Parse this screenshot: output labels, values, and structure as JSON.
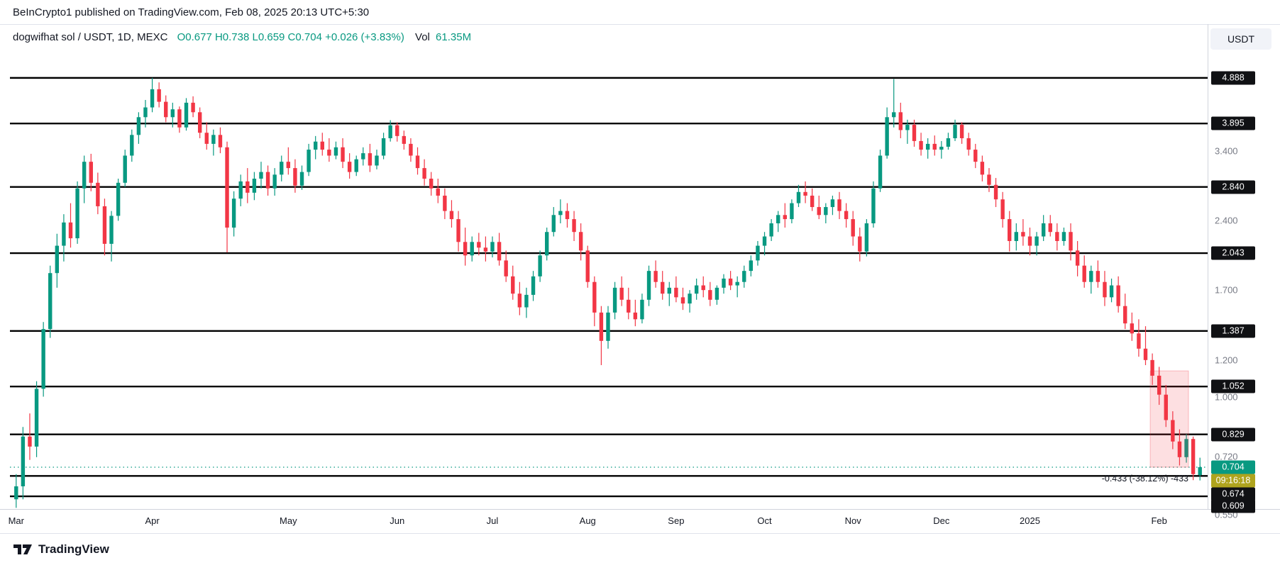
{
  "page": {
    "attribution": "BeInCrypto1 published on TradingView.com, Feb 08, 2025 20:13 UTC+5:30"
  },
  "legend": {
    "symbol": "dogwifhat sol / USDT, 1D, MEXC",
    "values": "O0.677 H0.738 L0.659 C0.704 +0.026 (+3.83%)",
    "vol_label": "Vol",
    "vol_value": "61.35M"
  },
  "toolbar": {
    "currency_button": "USDT"
  },
  "footer": {
    "brand": "TradingView"
  },
  "colors": {
    "up": "#089981",
    "down": "#f23645",
    "level_line": "#000000",
    "level_label_bg": "#101114",
    "price_label_bg": "#089981",
    "countdown_bg": "#afa41e",
    "measure_fill": "rgba(242,54,69,0.16)",
    "axis_text": "#787b86",
    "text": "#131722"
  },
  "chart_data": {
    "type": "candlestick",
    "symbol": "dogwifhat sol / USDT",
    "interval": "1D",
    "exchange": "MEXC",
    "price_scale": "log",
    "x_range": [
      "Mar 2024",
      "Feb 2025"
    ],
    "last_ohlc": {
      "open": 0.677,
      "high": 0.738,
      "low": 0.659,
      "close": 0.704,
      "change": "+0.026",
      "change_pct": "+3.83%",
      "volume": "61.35M"
    },
    "level_lines": [
      "4.888",
      "3.895",
      "2.840",
      "2.043",
      "1.387",
      "1.052",
      "0.829",
      "0.674",
      "0.609"
    ],
    "y_axis_ticks": [
      "3.400",
      "2.400",
      "1.700",
      "1.200",
      "1.000",
      "0.720",
      "0.550"
    ],
    "current_price": {
      "label": "0.704",
      "value": 0.704,
      "countdown": "09:16:18"
    },
    "measure_tool": {
      "label": "-0.433 (-38.12%) -433",
      "from_price": 1.137,
      "to_price": 0.704,
      "start_index": 167,
      "end_index": 172
    },
    "x_tick_labels": [
      {
        "label": "Mar",
        "index": 0
      },
      {
        "label": "Apr",
        "index": 20
      },
      {
        "label": "May",
        "index": 40
      },
      {
        "label": "Jun",
        "index": 56
      },
      {
        "label": "Jul",
        "index": 70
      },
      {
        "label": "Aug",
        "index": 84
      },
      {
        "label": "Sep",
        "index": 97
      },
      {
        "label": "Oct",
        "index": 110
      },
      {
        "label": "Nov",
        "index": 123
      },
      {
        "label": "Dec",
        "index": 136
      },
      {
        "label": "2025",
        "index": 149
      },
      {
        "label": "Feb",
        "index": 168
      }
    ],
    "candles": [
      [
        0.6,
        0.68,
        0.575,
        0.64
      ],
      [
        0.64,
        0.86,
        0.6,
        0.82
      ],
      [
        0.82,
        0.92,
        0.73,
        0.78
      ],
      [
        0.78,
        1.08,
        0.74,
        1.04
      ],
      [
        1.04,
        1.45,
        1.0,
        1.4
      ],
      [
        1.4,
        1.92,
        1.34,
        1.85
      ],
      [
        1.85,
        2.25,
        1.72,
        2.12
      ],
      [
        2.12,
        2.48,
        1.96,
        2.38
      ],
      [
        2.38,
        2.62,
        2.1,
        2.2
      ],
      [
        2.2,
        2.92,
        2.14,
        2.82
      ],
      [
        2.82,
        3.32,
        2.62,
        3.22
      ],
      [
        3.22,
        3.35,
        2.78,
        2.9
      ],
      [
        2.9,
        3.05,
        2.48,
        2.58
      ],
      [
        2.58,
        2.68,
        2.02,
        2.14
      ],
      [
        2.14,
        2.52,
        1.96,
        2.46
      ],
      [
        2.46,
        2.96,
        2.4,
        2.9
      ],
      [
        2.9,
        3.42,
        2.84,
        3.32
      ],
      [
        3.32,
        3.78,
        3.22,
        3.68
      ],
      [
        3.68,
        4.12,
        3.52,
        4.02
      ],
      [
        4.02,
        4.38,
        3.82,
        4.22
      ],
      [
        4.22,
        4.888,
        4.12,
        4.62
      ],
      [
        4.62,
        4.78,
        4.22,
        4.34
      ],
      [
        4.34,
        4.48,
        3.92,
        4.02
      ],
      [
        4.02,
        4.32,
        3.82,
        4.18
      ],
      [
        4.18,
        4.24,
        3.72,
        3.82
      ],
      [
        3.82,
        4.42,
        3.76,
        4.32
      ],
      [
        4.32,
        4.46,
        4.02,
        4.12
      ],
      [
        4.12,
        4.22,
        3.62,
        3.72
      ],
      [
        3.72,
        3.92,
        3.42,
        3.52
      ],
      [
        3.52,
        3.78,
        3.32,
        3.68
      ],
      [
        3.68,
        3.82,
        3.36,
        3.46
      ],
      [
        3.46,
        3.56,
        2.05,
        2.32
      ],
      [
        2.32,
        2.78,
        2.22,
        2.68
      ],
      [
        2.68,
        3.02,
        2.58,
        2.92
      ],
      [
        2.92,
        3.12,
        2.62,
        2.76
      ],
      [
        2.76,
        3.06,
        2.66,
        2.96
      ],
      [
        2.96,
        3.22,
        2.82,
        3.06
      ],
      [
        3.06,
        3.16,
        2.72,
        2.82
      ],
      [
        2.82,
        3.12,
        2.72,
        3.02
      ],
      [
        3.02,
        3.32,
        2.92,
        3.22
      ],
      [
        3.22,
        3.46,
        3.02,
        3.12
      ],
      [
        3.12,
        3.26,
        2.76,
        2.86
      ],
      [
        2.86,
        3.16,
        2.8,
        3.06
      ],
      [
        3.06,
        3.52,
        3.0,
        3.42
      ],
      [
        3.42,
        3.66,
        3.26,
        3.56
      ],
      [
        3.56,
        3.72,
        3.32,
        3.42
      ],
      [
        3.42,
        3.62,
        3.22,
        3.32
      ],
      [
        3.32,
        3.56,
        3.26,
        3.46
      ],
      [
        3.46,
        3.62,
        3.12,
        3.22
      ],
      [
        3.22,
        3.36,
        2.96,
        3.06
      ],
      [
        3.06,
        3.32,
        3.0,
        3.26
      ],
      [
        3.26,
        3.46,
        3.16,
        3.36
      ],
      [
        3.36,
        3.52,
        3.06,
        3.16
      ],
      [
        3.16,
        3.42,
        3.1,
        3.32
      ],
      [
        3.32,
        3.72,
        3.26,
        3.62
      ],
      [
        3.62,
        3.96,
        3.56,
        3.86
      ],
      [
        3.86,
        3.92,
        3.56,
        3.66
      ],
      [
        3.66,
        3.76,
        3.42,
        3.52
      ],
      [
        3.52,
        3.62,
        3.22,
        3.32
      ],
      [
        3.32,
        3.46,
        3.02,
        3.12
      ],
      [
        3.12,
        3.26,
        2.86,
        2.96
      ],
      [
        2.96,
        3.06,
        2.72,
        2.82
      ],
      [
        2.82,
        2.96,
        2.62,
        2.72
      ],
      [
        2.72,
        2.82,
        2.42,
        2.52
      ],
      [
        2.52,
        2.66,
        2.32,
        2.42
      ],
      [
        2.42,
        2.52,
        2.06,
        2.16
      ],
      [
        2.16,
        2.32,
        1.92,
        2.02
      ],
      [
        2.02,
        2.22,
        1.96,
        2.16
      ],
      [
        2.16,
        2.26,
        2.02,
        2.1
      ],
      [
        2.1,
        2.22,
        1.96,
        2.06
      ],
      [
        2.06,
        2.22,
        2.0,
        2.16
      ],
      [
        2.16,
        2.26,
        1.92,
        1.97
      ],
      [
        1.97,
        2.07,
        1.77,
        1.82
      ],
      [
        1.82,
        1.92,
        1.62,
        1.67
      ],
      [
        1.67,
        1.77,
        1.5,
        1.56
      ],
      [
        1.56,
        1.72,
        1.48,
        1.66
      ],
      [
        1.66,
        1.87,
        1.61,
        1.82
      ],
      [
        1.82,
        2.07,
        1.77,
        2.02
      ],
      [
        2.02,
        2.32,
        1.97,
        2.27
      ],
      [
        2.27,
        2.57,
        2.22,
        2.47
      ],
      [
        2.47,
        2.67,
        2.37,
        2.52
      ],
      [
        2.52,
        2.62,
        2.32,
        2.42
      ],
      [
        2.42,
        2.52,
        2.17,
        2.27
      ],
      [
        2.27,
        2.37,
        1.97,
        2.07
      ],
      [
        2.07,
        2.12,
        1.72,
        1.77
      ],
      [
        1.77,
        1.82,
        1.42,
        1.52
      ],
      [
        1.52,
        1.57,
        1.17,
        1.32
      ],
      [
        1.32,
        1.57,
        1.27,
        1.52
      ],
      [
        1.52,
        1.77,
        1.47,
        1.72
      ],
      [
        1.72,
        1.82,
        1.57,
        1.62
      ],
      [
        1.62,
        1.72,
        1.47,
        1.52
      ],
      [
        1.52,
        1.62,
        1.42,
        1.47
      ],
      [
        1.47,
        1.67,
        1.44,
        1.62
      ],
      [
        1.62,
        1.92,
        1.57,
        1.87
      ],
      [
        1.87,
        1.97,
        1.72,
        1.77
      ],
      [
        1.77,
        1.87,
        1.62,
        1.67
      ],
      [
        1.67,
        1.77,
        1.57,
        1.72
      ],
      [
        1.72,
        1.82,
        1.6,
        1.64
      ],
      [
        1.64,
        1.72,
        1.54,
        1.59
      ],
      [
        1.59,
        1.7,
        1.52,
        1.67
      ],
      [
        1.67,
        1.8,
        1.62,
        1.74
      ],
      [
        1.74,
        1.82,
        1.64,
        1.7
      ],
      [
        1.7,
        1.77,
        1.57,
        1.62
      ],
      [
        1.62,
        1.74,
        1.58,
        1.72
      ],
      [
        1.72,
        1.84,
        1.67,
        1.8
      ],
      [
        1.8,
        1.87,
        1.7,
        1.74
      ],
      [
        1.74,
        1.82,
        1.64,
        1.77
      ],
      [
        1.77,
        1.92,
        1.72,
        1.87
      ],
      [
        1.87,
        2.02,
        1.82,
        1.97
      ],
      [
        1.97,
        2.17,
        1.92,
        2.12
      ],
      [
        2.12,
        2.27,
        2.02,
        2.22
      ],
      [
        2.22,
        2.42,
        2.17,
        2.37
      ],
      [
        2.37,
        2.52,
        2.27,
        2.47
      ],
      [
        2.47,
        2.62,
        2.32,
        2.42
      ],
      [
        2.42,
        2.67,
        2.37,
        2.62
      ],
      [
        2.62,
        2.87,
        2.57,
        2.77
      ],
      [
        2.77,
        2.92,
        2.62,
        2.72
      ],
      [
        2.72,
        2.82,
        2.52,
        2.57
      ],
      [
        2.57,
        2.72,
        2.42,
        2.47
      ],
      [
        2.47,
        2.62,
        2.37,
        2.57
      ],
      [
        2.57,
        2.72,
        2.47,
        2.67
      ],
      [
        2.67,
        2.77,
        2.42,
        2.52
      ],
      [
        2.52,
        2.62,
        2.32,
        2.42
      ],
      [
        2.42,
        2.52,
        2.12,
        2.22
      ],
      [
        2.22,
        2.32,
        1.96,
        2.06
      ],
      [
        2.06,
        2.42,
        2.01,
        2.37
      ],
      [
        2.37,
        2.92,
        2.32,
        2.82
      ],
      [
        2.82,
        3.42,
        2.77,
        3.32
      ],
      [
        3.32,
        4.22,
        3.27,
        4.02
      ],
      [
        4.02,
        4.86,
        3.82,
        4.12
      ],
      [
        4.12,
        4.32,
        3.62,
        3.77
      ],
      [
        3.77,
        3.97,
        3.52,
        3.87
      ],
      [
        3.87,
        3.97,
        3.47,
        3.57
      ],
      [
        3.57,
        3.72,
        3.32,
        3.42
      ],
      [
        3.42,
        3.62,
        3.27,
        3.52
      ],
      [
        3.52,
        3.67,
        3.32,
        3.42
      ],
      [
        3.42,
        3.57,
        3.27,
        3.47
      ],
      [
        3.47,
        3.72,
        3.42,
        3.62
      ],
      [
        3.62,
        3.97,
        3.57,
        3.87
      ],
      [
        3.87,
        3.92,
        3.52,
        3.62
      ],
      [
        3.62,
        3.72,
        3.32,
        3.42
      ],
      [
        3.42,
        3.52,
        3.12,
        3.22
      ],
      [
        3.22,
        3.32,
        2.92,
        3.02
      ],
      [
        3.02,
        3.12,
        2.77,
        2.87
      ],
      [
        2.87,
        2.97,
        2.57,
        2.67
      ],
      [
        2.67,
        2.77,
        2.32,
        2.42
      ],
      [
        2.42,
        2.52,
        2.06,
        2.17
      ],
      [
        2.17,
        2.37,
        2.07,
        2.27
      ],
      [
        2.27,
        2.42,
        2.12,
        2.22
      ],
      [
        2.22,
        2.32,
        2.02,
        2.12
      ],
      [
        2.12,
        2.27,
        2.02,
        2.22
      ],
      [
        2.22,
        2.47,
        2.17,
        2.37
      ],
      [
        2.37,
        2.47,
        2.22,
        2.27
      ],
      [
        2.27,
        2.37,
        2.07,
        2.17
      ],
      [
        2.17,
        2.32,
        2.12,
        2.27
      ],
      [
        2.27,
        2.37,
        1.97,
        2.07
      ],
      [
        2.07,
        2.17,
        1.82,
        1.92
      ],
      [
        1.92,
        2.02,
        1.72,
        1.77
      ],
      [
        1.77,
        1.92,
        1.67,
        1.87
      ],
      [
        1.87,
        1.97,
        1.72,
        1.77
      ],
      [
        1.77,
        1.87,
        1.57,
        1.64
      ],
      [
        1.64,
        1.8,
        1.6,
        1.74
      ],
      [
        1.74,
        1.82,
        1.52,
        1.57
      ],
      [
        1.57,
        1.67,
        1.4,
        1.44
      ],
      [
        1.44,
        1.52,
        1.32,
        1.37
      ],
      [
        1.37,
        1.47,
        1.22,
        1.27
      ],
      [
        1.27,
        1.42,
        1.17,
        1.2
      ],
      [
        1.2,
        1.24,
        1.06,
        1.11
      ],
      [
        1.11,
        1.16,
        0.96,
        1.01
      ],
      [
        1.01,
        1.06,
        0.86,
        0.89
      ],
      [
        0.89,
        0.93,
        0.77,
        0.8
      ],
      [
        0.8,
        0.85,
        0.71,
        0.74
      ],
      [
        0.74,
        0.83,
        0.72,
        0.81
      ],
      [
        0.81,
        0.82,
        0.66,
        0.68
      ],
      [
        0.677,
        0.738,
        0.659,
        0.704
      ]
    ]
  }
}
